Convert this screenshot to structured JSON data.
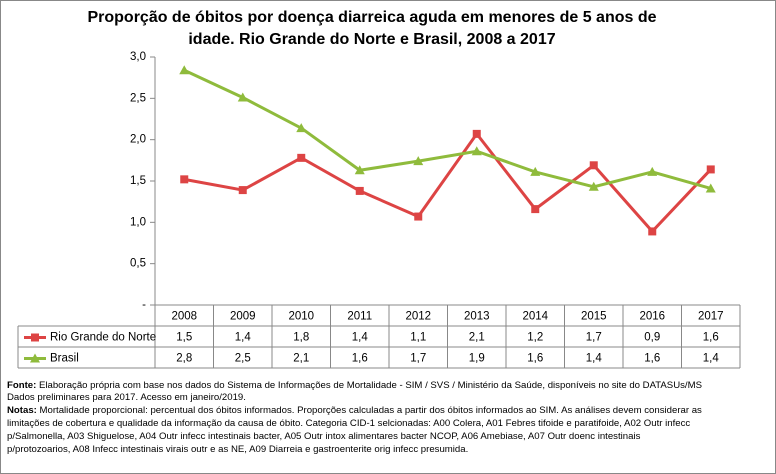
{
  "chart_data": {
    "type": "line",
    "title": [
      "Proporção de óbitos por doença diarreica aguda em menores de 5 anos de",
      "idade. Rio Grande do Norte e Brasil, 2008 a 2017"
    ],
    "categories": [
      "2008",
      "2009",
      "2010",
      "2011",
      "2012",
      "2013",
      "2014",
      "2015",
      "2016",
      "2017"
    ],
    "series": [
      {
        "name": "Rio Grande do Norte",
        "color": "#dd4444",
        "marker": "square",
        "values": [
          1.52,
          1.39,
          1.78,
          1.38,
          1.07,
          2.07,
          1.16,
          1.69,
          0.89,
          1.64
        ],
        "value_labels": [
          "1,5",
          "1,4",
          "1,8",
          "1,4",
          "1,1",
          "2,1",
          "1,2",
          "1,7",
          "0,9",
          "1,6"
        ]
      },
      {
        "name": "Brasil",
        "color": "#8fbb3c",
        "marker": "triangle",
        "values": [
          2.84,
          2.51,
          2.14,
          1.63,
          1.74,
          1.86,
          1.61,
          1.43,
          1.61,
          1.41
        ],
        "value_labels": [
          "2,8",
          "2,5",
          "2,1",
          "1,6",
          "1,7",
          "1,9",
          "1,6",
          "1,4",
          "1,6",
          "1,4"
        ]
      }
    ],
    "ylim": [
      0,
      3
    ],
    "yticks": [
      {
        "value": 0,
        "label": "-"
      },
      {
        "value": 0.5,
        "label": "0,5"
      },
      {
        "value": 1,
        "label": "1,0"
      },
      {
        "value": 1.5,
        "label": "1,5"
      },
      {
        "value": 2,
        "label": "2,0"
      },
      {
        "value": 2.5,
        "label": "2,5"
      },
      {
        "value": 3,
        "label": "3,0"
      }
    ],
    "grid": false
  },
  "footnotes": {
    "source_label": "Fonte:",
    "source_lines": [
      "Elaboração própria com base nos dados do Sistema de Informações de Mortalidade - SIM / SVS / Ministério da Saúde, disponíveis no site do DATASUs/MS",
      "Dados preliminares para 2017. Acesso em janeiro/2019."
    ],
    "notes_label": "Notas:",
    "notes_lines": [
      "Mortalidade proporcional: percentual dos óbitos informados. Proporções calculadas a partir dos óbitos informados ao SIM. As análises devem considerar as",
      "limitações de cobertura e qualidade da informação da causa de óbito. Categoria CID-1 selcionadas: A00 Colera, A01 Febres tifoide e paratifoide, A02 Outr infecc",
      "p/Salmonella, A03 Shiguelose, A04 Outr infecc intestinais bacter, A05 Outr intox alimentares bacter NCOP, A06 Amebiase, A07 Outr doenc intestinais",
      "p/protozoarios, A08 Infecc intestinais virais outr e as NE, A09 Diarreia e gastroenterite orig infecc presumida."
    ]
  }
}
